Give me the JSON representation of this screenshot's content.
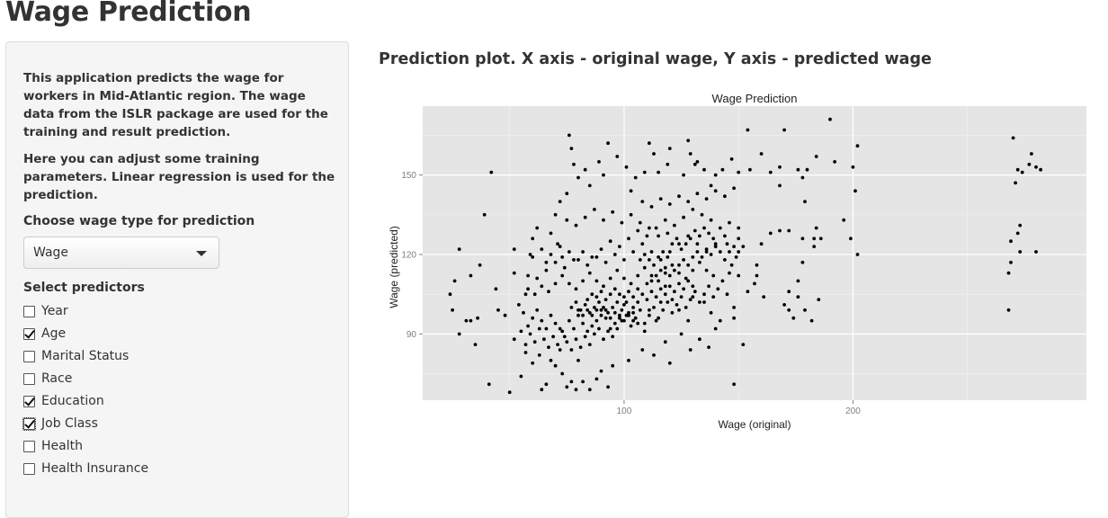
{
  "app_title": "Wage Prediction",
  "sidebar": {
    "description": [
      "This application predicts the wage for workers in Mid-Atlantic region. The wage data from the ISLR package are used for the training and result prediction.",
      "Here you can adjust some training parameters. Linear regression is used for the prediction."
    ],
    "wage_type": {
      "label": "Choose wage type for prediction",
      "selected": "Wage"
    },
    "predictors": {
      "label": "Select predictors",
      "items": [
        {
          "label": "Year",
          "checked": false
        },
        {
          "label": "Age",
          "checked": true
        },
        {
          "label": "Marital Status",
          "checked": false
        },
        {
          "label": "Race",
          "checked": false
        },
        {
          "label": "Education",
          "checked": true
        },
        {
          "label": "Job Class",
          "checked": true,
          "focused": true
        },
        {
          "label": "Health",
          "checked": false
        },
        {
          "label": "Health Insurance",
          "checked": false
        }
      ]
    }
  },
  "main": {
    "plot_heading": "Prediction plot. X axis - original wage, Y axis - predicted wage"
  },
  "colors": {
    "panel_background": "#e5e5e5",
    "gridline": "#ffffff",
    "point": "#000000",
    "sidebar_background": "#f5f5f5"
  },
  "chart_data": {
    "type": "scatter",
    "title": "Wage Prediction",
    "xlabel": "Wage (original)",
    "ylabel": "Wage (predicted)",
    "xlim": [
      12,
      302
    ],
    "ylim": [
      65,
      176
    ],
    "x_ticks": [
      100,
      200
    ],
    "y_ticks": [
      90,
      120,
      150
    ],
    "grid": true,
    "points": [
      [
        270,
        164
      ],
      [
        278,
        158
      ],
      [
        277,
        154
      ],
      [
        272,
        152
      ],
      [
        274,
        151
      ],
      [
        280,
        153
      ],
      [
        282,
        152
      ],
      [
        271,
        147
      ],
      [
        273,
        131
      ],
      [
        272,
        128
      ],
      [
        273,
        121
      ],
      [
        280,
        121
      ],
      [
        269,
        125
      ],
      [
        269,
        117
      ],
      [
        268,
        113
      ],
      [
        268,
        99
      ],
      [
        190,
        171
      ],
      [
        170,
        167
      ],
      [
        154,
        167
      ],
      [
        202,
        161
      ],
      [
        200,
        153
      ],
      [
        201,
        144
      ],
      [
        192,
        155
      ],
      [
        184,
        157
      ],
      [
        178,
        149
      ],
      [
        180,
        152
      ],
      [
        176,
        152
      ],
      [
        168,
        153
      ],
      [
        168,
        146
      ],
      [
        160,
        158
      ],
      [
        164,
        151
      ],
      [
        179,
        140
      ],
      [
        184,
        130
      ],
      [
        186,
        126
      ],
      [
        183,
        126
      ],
      [
        178,
        126
      ],
      [
        199,
        126
      ],
      [
        202,
        120
      ],
      [
        196,
        133
      ],
      [
        178,
        117
      ],
      [
        183,
        123
      ],
      [
        172,
        129
      ],
      [
        168,
        129
      ],
      [
        164,
        128
      ],
      [
        160,
        124
      ],
      [
        158,
        116
      ],
      [
        176,
        110
      ],
      [
        172,
        106
      ],
      [
        176,
        104
      ],
      [
        161,
        104
      ],
      [
        152,
        123
      ],
      [
        179,
        99
      ],
      [
        182,
        95
      ],
      [
        174,
        96
      ],
      [
        172,
        99
      ],
      [
        170,
        101
      ],
      [
        185,
        103
      ],
      [
        158,
        112
      ],
      [
        157,
        109
      ],
      [
        150,
        126
      ],
      [
        149,
        119
      ],
      [
        147,
        116
      ],
      [
        154,
        106
      ],
      [
        148,
        100
      ],
      [
        148,
        96
      ],
      [
        145,
        105
      ],
      [
        150,
        112
      ],
      [
        146,
        113
      ],
      [
        145,
        124
      ],
      [
        150,
        130
      ],
      [
        152,
        86
      ],
      [
        148,
        71
      ],
      [
        155,
        152
      ],
      [
        150,
        151
      ],
      [
        147,
        156
      ],
      [
        143,
        152
      ],
      [
        140,
        150
      ],
      [
        138,
        146
      ],
      [
        135,
        152
      ],
      [
        132,
        155
      ],
      [
        129,
        158
      ],
      [
        128,
        163
      ],
      [
        131,
        154
      ],
      [
        126,
        150
      ],
      [
        120,
        160
      ],
      [
        119,
        154
      ],
      [
        115,
        151
      ],
      [
        113,
        158
      ],
      [
        111,
        162
      ],
      [
        109,
        151
      ],
      [
        105,
        149
      ],
      [
        103,
        144
      ],
      [
        101,
        153
      ],
      [
        97,
        157
      ],
      [
        93,
        162
      ],
      [
        91,
        150
      ],
      [
        89,
        155
      ],
      [
        85,
        146
      ],
      [
        83,
        152
      ],
      [
        80,
        149
      ],
      [
        76,
        165
      ],
      [
        78,
        154
      ],
      [
        77,
        160
      ],
      [
        75,
        143
      ],
      [
        72,
        140
      ],
      [
        70,
        135
      ],
      [
        68,
        128
      ],
      [
        71,
        124
      ],
      [
        73,
        119
      ],
      [
        66,
        117
      ],
      [
        62,
        130
      ],
      [
        60,
        126
      ],
      [
        58,
        112
      ],
      [
        59,
        120
      ],
      [
        57,
        105
      ],
      [
        52,
        122
      ],
      [
        52,
        113
      ],
      [
        48,
        97
      ],
      [
        45,
        99
      ],
      [
        44,
        107
      ],
      [
        42,
        151
      ],
      [
        39,
        135
      ],
      [
        37,
        116
      ],
      [
        33,
        112
      ],
      [
        31,
        95
      ],
      [
        28,
        122
      ],
      [
        25,
        99
      ],
      [
        26,
        110
      ],
      [
        24,
        105
      ],
      [
        28,
        90
      ],
      [
        33,
        95
      ],
      [
        36,
        96
      ],
      [
        35,
        86
      ],
      [
        41,
        71
      ],
      [
        50,
        68
      ],
      [
        55,
        74
      ],
      [
        57,
        83
      ],
      [
        60,
        79
      ],
      [
        63,
        82
      ],
      [
        64,
        69
      ],
      [
        66,
        71
      ],
      [
        68,
        80
      ],
      [
        70,
        78
      ],
      [
        73,
        75
      ],
      [
        72,
        84
      ],
      [
        75,
        70
      ],
      [
        77,
        72
      ],
      [
        79,
        69
      ],
      [
        80,
        80
      ],
      [
        82,
        72
      ],
      [
        85,
        69
      ],
      [
        88,
        73
      ],
      [
        90,
        76
      ],
      [
        93,
        70
      ],
      [
        95,
        78
      ],
      [
        102,
        80
      ],
      [
        108,
        84
      ],
      [
        113,
        82
      ],
      [
        118,
        87
      ],
      [
        120,
        79
      ],
      [
        125,
        90
      ],
      [
        129,
        84
      ],
      [
        133,
        88
      ],
      [
        137,
        85
      ],
      [
        140,
        92
      ],
      [
        142,
        95
      ],
      [
        138,
        98
      ],
      [
        135,
        102
      ],
      [
        130,
        104
      ],
      [
        128,
        95
      ],
      [
        124,
        99
      ],
      [
        121,
        103
      ],
      [
        118,
        108
      ],
      [
        116,
        102
      ],
      [
        114,
        95
      ],
      [
        111,
        99
      ],
      [
        109,
        91
      ],
      [
        106,
        94
      ],
      [
        104,
        98
      ],
      [
        101,
        102
      ],
      [
        98,
        96
      ],
      [
        96,
        94
      ],
      [
        94,
        92
      ],
      [
        92,
        96
      ],
      [
        90,
        99
      ],
      [
        88,
        95
      ],
      [
        86,
        93
      ],
      [
        84,
        91
      ],
      [
        82,
        94
      ],
      [
        80,
        97
      ],
      [
        78,
        92
      ],
      [
        76,
        95
      ],
      [
        74,
        89
      ],
      [
        72,
        92
      ],
      [
        70,
        94
      ],
      [
        68,
        97
      ],
      [
        66,
        92
      ],
      [
        64,
        95
      ],
      [
        62,
        99
      ],
      [
        60,
        96
      ],
      [
        58,
        93
      ],
      [
        56,
        98
      ],
      [
        54,
        101
      ],
      [
        52,
        88
      ],
      [
        55,
        91
      ],
      [
        57,
        86
      ],
      [
        59,
        90
      ],
      [
        61,
        87
      ],
      [
        63,
        92
      ],
      [
        65,
        88
      ],
      [
        67,
        85
      ],
      [
        69,
        89
      ],
      [
        71,
        86
      ],
      [
        73,
        91
      ],
      [
        75,
        87
      ],
      [
        77,
        84
      ],
      [
        79,
        88
      ],
      [
        81,
        85
      ],
      [
        83,
        89
      ],
      [
        85,
        86
      ],
      [
        87,
        90
      ],
      [
        89,
        92
      ],
      [
        91,
        88
      ],
      [
        93,
        91
      ],
      [
        95,
        89
      ],
      [
        97,
        92
      ],
      [
        99,
        95
      ],
      [
        101,
        97
      ],
      [
        103,
        93
      ],
      [
        105,
        96
      ],
      [
        107,
        99
      ],
      [
        109,
        94
      ],
      [
        111,
        97
      ],
      [
        113,
        100
      ],
      [
        115,
        96
      ],
      [
        117,
        99
      ],
      [
        119,
        102
      ],
      [
        121,
        98
      ],
      [
        123,
        101
      ],
      [
        125,
        104
      ],
      [
        127,
        100
      ],
      [
        129,
        103
      ],
      [
        131,
        106
      ],
      [
        133,
        102
      ],
      [
        135,
        105
      ],
      [
        137,
        108
      ],
      [
        139,
        104
      ],
      [
        141,
        107
      ],
      [
        143,
        110
      ],
      [
        139,
        112
      ],
      [
        136,
        114
      ],
      [
        133,
        117
      ],
      [
        130,
        114
      ],
      [
        127,
        111
      ],
      [
        124,
        113
      ],
      [
        121,
        116
      ],
      [
        118,
        113
      ],
      [
        115,
        110
      ],
      [
        112,
        112
      ],
      [
        109,
        115
      ],
      [
        106,
        112
      ],
      [
        103,
        109
      ],
      [
        100,
        111
      ],
      [
        97,
        114
      ],
      [
        94,
        111
      ],
      [
        91,
        108
      ],
      [
        88,
        110
      ],
      [
        85,
        113
      ],
      [
        82,
        110
      ],
      [
        79,
        107
      ],
      [
        76,
        109
      ],
      [
        73,
        112
      ],
      [
        70,
        109
      ],
      [
        67,
        106
      ],
      [
        64,
        108
      ],
      [
        61,
        105
      ],
      [
        58,
        107
      ],
      [
        62,
        111
      ],
      [
        66,
        114
      ],
      [
        70,
        117
      ],
      [
        74,
        115
      ],
      [
        78,
        118
      ],
      [
        82,
        121
      ],
      [
        86,
        119
      ],
      [
        90,
        122
      ],
      [
        94,
        125
      ],
      [
        98,
        123
      ],
      [
        102,
        126
      ],
      [
        106,
        129
      ],
      [
        110,
        127
      ],
      [
        114,
        130
      ],
      [
        118,
        133
      ],
      [
        122,
        131
      ],
      [
        126,
        134
      ],
      [
        130,
        137
      ],
      [
        134,
        135
      ],
      [
        138,
        133
      ],
      [
        142,
        130
      ],
      [
        146,
        132
      ],
      [
        144,
        127
      ],
      [
        140,
        124
      ],
      [
        136,
        121
      ],
      [
        132,
        124
      ],
      [
        128,
        127
      ],
      [
        124,
        124
      ],
      [
        120,
        121
      ],
      [
        116,
        118
      ],
      [
        112,
        121
      ],
      [
        108,
        124
      ],
      [
        104,
        121
      ],
      [
        100,
        118
      ],
      [
        96,
        120
      ],
      [
        92,
        117
      ],
      [
        88,
        119
      ],
      [
        84,
        116
      ],
      [
        80,
        118
      ],
      [
        76,
        121
      ],
      [
        72,
        123
      ],
      [
        68,
        120
      ],
      [
        64,
        122
      ],
      [
        60,
        119
      ],
      [
        77,
        100
      ],
      [
        79,
        102
      ],
      [
        81,
        99
      ],
      [
        83,
        101
      ],
      [
        85,
        98
      ],
      [
        87,
        100
      ],
      [
        89,
        102
      ],
      [
        91,
        100
      ],
      [
        93,
        98
      ],
      [
        95,
        100
      ],
      [
        97,
        102
      ],
      [
        99,
        99
      ],
      [
        100,
        101
      ],
      [
        102,
        98
      ],
      [
        104,
        100
      ],
      [
        106,
        102
      ],
      [
        108,
        105
      ],
      [
        110,
        103
      ],
      [
        112,
        106
      ],
      [
        114,
        104
      ],
      [
        116,
        107
      ],
      [
        118,
        105
      ],
      [
        120,
        108
      ],
      [
        122,
        106
      ],
      [
        124,
        109
      ],
      [
        126,
        107
      ],
      [
        128,
        110
      ],
      [
        130,
        108
      ],
      [
        84,
        103
      ],
      [
        86,
        105
      ],
      [
        88,
        104
      ],
      [
        90,
        106
      ],
      [
        92,
        103
      ],
      [
        94,
        105
      ],
      [
        96,
        107
      ],
      [
        98,
        105
      ],
      [
        100,
        104
      ],
      [
        102,
        106
      ],
      [
        104,
        104
      ],
      [
        106,
        107
      ],
      [
        94,
        96
      ],
      [
        96,
        98
      ],
      [
        98,
        97
      ],
      [
        100,
        95
      ],
      [
        102,
        97
      ],
      [
        104,
        95
      ],
      [
        92,
        99
      ],
      [
        90,
        97
      ],
      [
        88,
        99
      ],
      [
        86,
        97
      ],
      [
        84,
        99
      ],
      [
        82,
        97
      ],
      [
        80,
        99
      ],
      [
        110,
        109
      ],
      [
        112,
        110
      ],
      [
        114,
        112
      ],
      [
        116,
        114
      ],
      [
        118,
        115
      ],
      [
        120,
        112
      ],
      [
        122,
        114
      ],
      [
        124,
        116
      ],
      [
        126,
        118
      ],
      [
        128,
        116
      ],
      [
        130,
        119
      ],
      [
        132,
        121
      ],
      [
        134,
        119
      ],
      [
        136,
        122
      ],
      [
        138,
        120
      ],
      [
        140,
        123
      ],
      [
        142,
        121
      ],
      [
        144,
        118
      ],
      [
        146,
        121
      ],
      [
        148,
        123
      ],
      [
        150,
        121
      ],
      [
        107,
        118
      ],
      [
        109,
        120
      ],
      [
        111,
        118
      ],
      [
        113,
        116
      ],
      [
        115,
        119
      ],
      [
        117,
        121
      ],
      [
        119,
        119
      ],
      [
        121,
        124
      ],
      [
        123,
        126
      ],
      [
        125,
        122
      ],
      [
        127,
        124
      ],
      [
        129,
        126
      ],
      [
        131,
        129
      ],
      [
        133,
        127
      ],
      [
        135,
        130
      ],
      [
        137,
        128
      ],
      [
        139,
        126
      ],
      [
        119,
        128
      ],
      [
        115,
        127
      ],
      [
        111,
        130
      ],
      [
        107,
        132
      ],
      [
        103,
        135
      ],
      [
        99,
        132
      ],
      [
        95,
        136
      ],
      [
        91,
        133
      ],
      [
        87,
        137
      ],
      [
        83,
        134
      ],
      [
        79,
        131
      ],
      [
        75,
        133
      ],
      [
        108,
        140
      ],
      [
        112,
        138
      ],
      [
        116,
        141
      ],
      [
        120,
        139
      ],
      [
        124,
        142
      ],
      [
        128,
        140
      ],
      [
        132,
        143
      ],
      [
        136,
        141
      ],
      [
        140,
        144
      ],
      [
        144,
        142
      ],
      [
        148,
        145
      ]
    ]
  }
}
